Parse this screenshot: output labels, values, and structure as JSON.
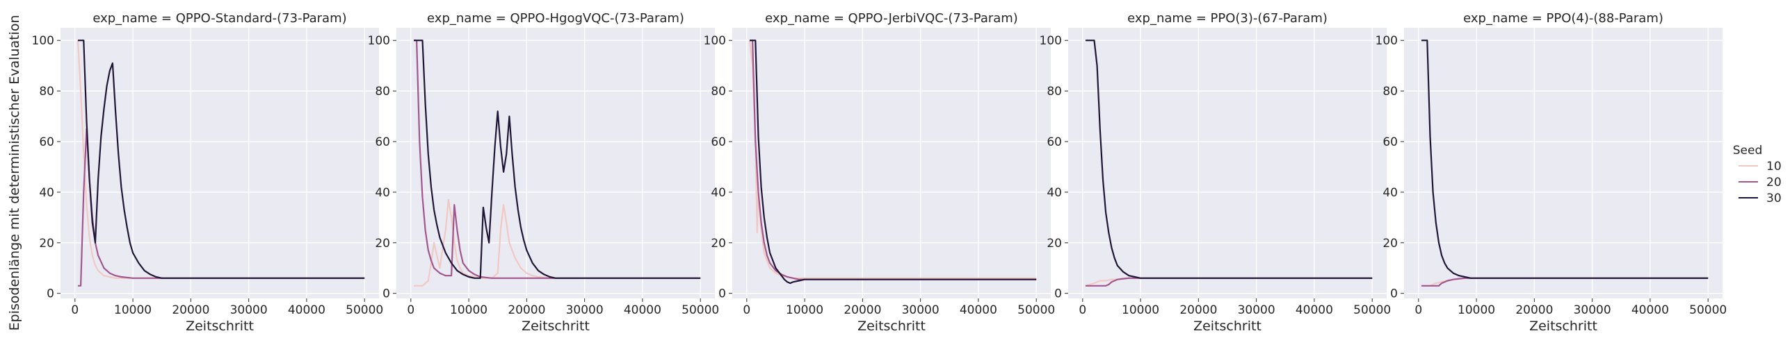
{
  "figure": {
    "ylabel": "Episodenlänge mit deterministischer Evaluation",
    "legend": {
      "title": "Seed",
      "entries": [
        {
          "label": "10",
          "color": "#f0c9c5"
        },
        {
          "label": "20",
          "color": "#a1568e"
        },
        {
          "label": "30",
          "color": "#1f1637"
        }
      ]
    }
  },
  "chart_data": [
    {
      "type": "line",
      "title": "exp_name = QPPO-Standard-(73-Param)",
      "xlabel": "Zeitschritt",
      "xlim": [
        -2500,
        52500
      ],
      "ylim": [
        -2,
        105
      ],
      "xticks": [
        0,
        10000,
        20000,
        30000,
        40000,
        50000
      ],
      "yticks": [
        0,
        20,
        40,
        60,
        80,
        100
      ],
      "grid": true,
      "series": [
        {
          "name": "10",
          "color": "#f0c9c5",
          "x": [
            500,
            1000,
            1500,
            2000,
            2500,
            3000,
            3500,
            4000,
            5000,
            6000,
            7000,
            8000,
            10000,
            15000,
            20000,
            30000,
            40000,
            50000
          ],
          "y": [
            100,
            80,
            55,
            35,
            22,
            15,
            11,
            9,
            7,
            6.5,
            6,
            6,
            6,
            6,
            6,
            6,
            6,
            6
          ]
        },
        {
          "name": "20",
          "color": "#a1568e",
          "x": [
            500,
            1000,
            1500,
            2000,
            2500,
            3000,
            3500,
            4000,
            5000,
            6000,
            7000,
            8000,
            10000,
            15000,
            20000,
            30000,
            40000,
            50000
          ],
          "y": [
            3,
            3,
            40,
            65,
            45,
            30,
            20,
            15,
            10,
            8,
            7,
            6.5,
            6,
            6,
            6,
            6,
            6,
            6
          ]
        },
        {
          "name": "30",
          "color": "#1f1637",
          "x": [
            500,
            1000,
            1500,
            2000,
            2500,
            3000,
            3500,
            4000,
            4500,
            5000,
            5500,
            6000,
            6500,
            7000,
            7500,
            8000,
            8500,
            9000,
            9500,
            10000,
            11000,
            12000,
            13000,
            14000,
            15000,
            17000,
            20000,
            30000,
            40000,
            50000
          ],
          "y": [
            100,
            100,
            100,
            68,
            45,
            28,
            20,
            45,
            62,
            73,
            82,
            88,
            91,
            72,
            55,
            42,
            33,
            26,
            20,
            16,
            12,
            9,
            7.5,
            6.5,
            6,
            6,
            6,
            6,
            6,
            6
          ]
        }
      ]
    },
    {
      "type": "line",
      "title": "exp_name = QPPO-HgogVQC-(73-Param)",
      "xlabel": "Zeitschritt",
      "xlim": [
        -2500,
        52500
      ],
      "ylim": [
        -2,
        105
      ],
      "xticks": [
        0,
        10000,
        20000,
        30000,
        40000,
        50000
      ],
      "yticks": [
        0,
        20,
        40,
        60,
        80,
        100
      ],
      "grid": true,
      "series": [
        {
          "name": "10",
          "color": "#f0c9c5",
          "x": [
            500,
            2000,
            3000,
            3500,
            4000,
            4500,
            5000,
            5500,
            6000,
            6500,
            7000,
            7500,
            8000,
            8500,
            9000,
            10000,
            11000,
            12000,
            13000,
            14000,
            15000,
            15500,
            16000,
            16500,
            17000,
            18000,
            19000,
            20000,
            21000,
            22000,
            24000,
            30000,
            40000,
            50000
          ],
          "y": [
            3,
            3,
            5,
            12,
            20,
            15,
            10,
            18,
            25,
            37,
            30,
            20,
            13,
            10,
            8,
            7,
            6.5,
            6,
            6,
            6,
            8,
            25,
            35,
            28,
            20,
            14,
            10,
            8,
            7,
            6.5,
            6,
            6,
            6,
            6
          ]
        },
        {
          "name": "20",
          "color": "#a1568e",
          "x": [
            500,
            1000,
            1500,
            2000,
            2500,
            3000,
            3500,
            4000,
            5000,
            6000,
            7000,
            7500,
            8000,
            8500,
            9000,
            10000,
            11000,
            12000,
            14000,
            16000,
            20000,
            30000,
            40000,
            50000
          ],
          "y": [
            100,
            100,
            60,
            38,
            25,
            17,
            13,
            10,
            8,
            7,
            7,
            35,
            25,
            17,
            12,
            9,
            7.5,
            6.5,
            6,
            6,
            6,
            6,
            6,
            6
          ]
        },
        {
          "name": "30",
          "color": "#1f1637",
          "x": [
            500,
            1000,
            2000,
            2500,
            3000,
            3500,
            4000,
            4500,
            5000,
            6000,
            7000,
            8000,
            9000,
            10000,
            11000,
            12000,
            12500,
            13000,
            13500,
            14000,
            14500,
            15000,
            15500,
            16000,
            16500,
            17000,
            17500,
            18000,
            18500,
            19000,
            19500,
            20000,
            21000,
            22000,
            23000,
            24000,
            25000,
            27000,
            30000,
            40000,
            50000
          ],
          "y": [
            100,
            100,
            100,
            75,
            55,
            42,
            33,
            27,
            22,
            16,
            12,
            9,
            7.5,
            6.5,
            6,
            6,
            34,
            26,
            20,
            40,
            58,
            72,
            58,
            48,
            55,
            70,
            55,
            42,
            33,
            26,
            21,
            17,
            12,
            9,
            7.5,
            6.5,
            6,
            6,
            6,
            6,
            6
          ]
        }
      ]
    },
    {
      "type": "line",
      "title": "exp_name = QPPO-JerbiVQC-(73-Param)",
      "xlabel": "Zeitschritt",
      "xlim": [
        -2500,
        52500
      ],
      "ylim": [
        -2,
        105
      ],
      "xticks": [
        0,
        10000,
        20000,
        30000,
        40000,
        50000
      ],
      "yticks": [
        0,
        20,
        40,
        60,
        80,
        100
      ],
      "grid": true,
      "series": [
        {
          "name": "10",
          "color": "#f0c9c5",
          "x": [
            500,
            1000,
            1500,
            1800,
            2000,
            2500,
            3000,
            4000,
            5000,
            6000,
            7000,
            8000,
            10000,
            15000,
            20000,
            30000,
            40000,
            50000
          ],
          "y": [
            100,
            90,
            60,
            24,
            40,
            25,
            16,
            10,
            8,
            7,
            6.5,
            6,
            6,
            6,
            6,
            6,
            6,
            6
          ]
        },
        {
          "name": "20",
          "color": "#a1568e",
          "x": [
            500,
            1000,
            1500,
            2000,
            2500,
            3000,
            3500,
            4000,
            5000,
            6000,
            7000,
            8000,
            9000,
            10000,
            12000,
            15000,
            20000,
            30000,
            40000,
            50000
          ],
          "y": [
            100,
            100,
            60,
            40,
            28,
            20,
            15,
            12,
            9,
            7.5,
            6.5,
            6,
            5.5,
            5.5,
            5.5,
            5.5,
            5.5,
            5.5,
            5.5,
            5.5
          ]
        },
        {
          "name": "30",
          "color": "#1f1637",
          "x": [
            500,
            1000,
            1500,
            2000,
            2500,
            3000,
            3500,
            4000,
            5000,
            6000,
            6500,
            7000,
            7500,
            8000,
            9000,
            10000,
            11000,
            12000,
            15000,
            20000,
            30000,
            40000,
            50000
          ],
          "y": [
            100,
            100,
            100,
            62,
            42,
            30,
            22,
            16,
            10,
            7,
            5.5,
            4.5,
            4,
            4.5,
            5,
            5.5,
            5.5,
            5.5,
            5.5,
            5.5,
            5.5,
            5.5,
            5.5
          ]
        }
      ]
    },
    {
      "type": "line",
      "title": "exp_name = PPO(3)-(67-Param)",
      "xlabel": "Zeitschritt",
      "xlim": [
        -2500,
        52500
      ],
      "ylim": [
        -2,
        105
      ],
      "xticks": [
        0,
        10000,
        20000,
        30000,
        40000,
        50000
      ],
      "yticks": [
        0,
        20,
        40,
        60,
        80,
        100
      ],
      "grid": true,
      "series": [
        {
          "name": "10",
          "color": "#f0c9c5",
          "x": [
            500,
            2000,
            3000,
            4000,
            5000,
            6000,
            7000,
            8000,
            10000,
            15000,
            20000,
            30000,
            40000,
            50000
          ],
          "y": [
            3,
            4,
            5,
            5,
            5.5,
            5.5,
            5.8,
            6,
            6,
            6,
            6,
            6,
            6,
            6
          ]
        },
        {
          "name": "20",
          "color": "#a1568e",
          "x": [
            500,
            2000,
            3000,
            4000,
            4500,
            5000,
            6000,
            7000,
            8000,
            10000,
            15000,
            20000,
            30000,
            40000,
            50000
          ],
          "y": [
            3,
            3,
            3,
            3,
            3.5,
            4.5,
            5.5,
            5.8,
            6,
            6,
            6,
            6,
            6,
            6,
            6
          ]
        },
        {
          "name": "30",
          "color": "#1f1637",
          "x": [
            500,
            1000,
            2000,
            2500,
            3000,
            3500,
            4000,
            4500,
            5000,
            5500,
            6000,
            7000,
            8000,
            9000,
            10000,
            12000,
            15000,
            20000,
            30000,
            40000,
            50000
          ],
          "y": [
            100,
            100,
            100,
            90,
            65,
            45,
            32,
            24,
            18,
            14,
            11,
            8.5,
            7,
            6.5,
            6,
            6,
            6,
            6,
            6,
            6,
            6
          ]
        }
      ]
    },
    {
      "type": "line",
      "title": "exp_name = PPO(4)-(88-Param)",
      "xlabel": "Zeitschritt",
      "xlim": [
        -2500,
        52500
      ],
      "ylim": [
        -2,
        105
      ],
      "xticks": [
        0,
        10000,
        20000,
        30000,
        40000,
        50000
      ],
      "yticks": [
        0,
        20,
        40,
        60,
        80,
        100
      ],
      "grid": true,
      "series": [
        {
          "name": "10",
          "color": "#f0c9c5",
          "x": [
            500,
            2000,
            3000,
            4000,
            5000,
            6000,
            7000,
            8000,
            10000,
            15000,
            20000,
            30000,
            40000,
            50000
          ],
          "y": [
            3,
            3,
            4,
            4.5,
            5,
            5.5,
            5.8,
            6,
            6,
            6,
            6,
            6,
            6,
            6
          ]
        },
        {
          "name": "20",
          "color": "#a1568e",
          "x": [
            500,
            2000,
            3000,
            3500,
            4000,
            5000,
            6000,
            7000,
            8000,
            10000,
            15000,
            20000,
            30000,
            40000,
            50000
          ],
          "y": [
            3,
            3,
            3,
            3,
            4,
            5,
            5.5,
            5.8,
            6,
            6,
            6,
            6,
            6,
            6,
            6
          ]
        },
        {
          "name": "30",
          "color": "#1f1637",
          "x": [
            500,
            1000,
            1500,
            2000,
            2500,
            3000,
            3500,
            4000,
            4500,
            5000,
            5500,
            6000,
            7000,
            8000,
            9000,
            10000,
            12000,
            15000,
            20000,
            30000,
            40000,
            50000
          ],
          "y": [
            100,
            100,
            100,
            62,
            40,
            28,
            20,
            15,
            12,
            10,
            9,
            8,
            7,
            6.5,
            6,
            6,
            6,
            6,
            6,
            6,
            6,
            6
          ]
        }
      ]
    }
  ]
}
